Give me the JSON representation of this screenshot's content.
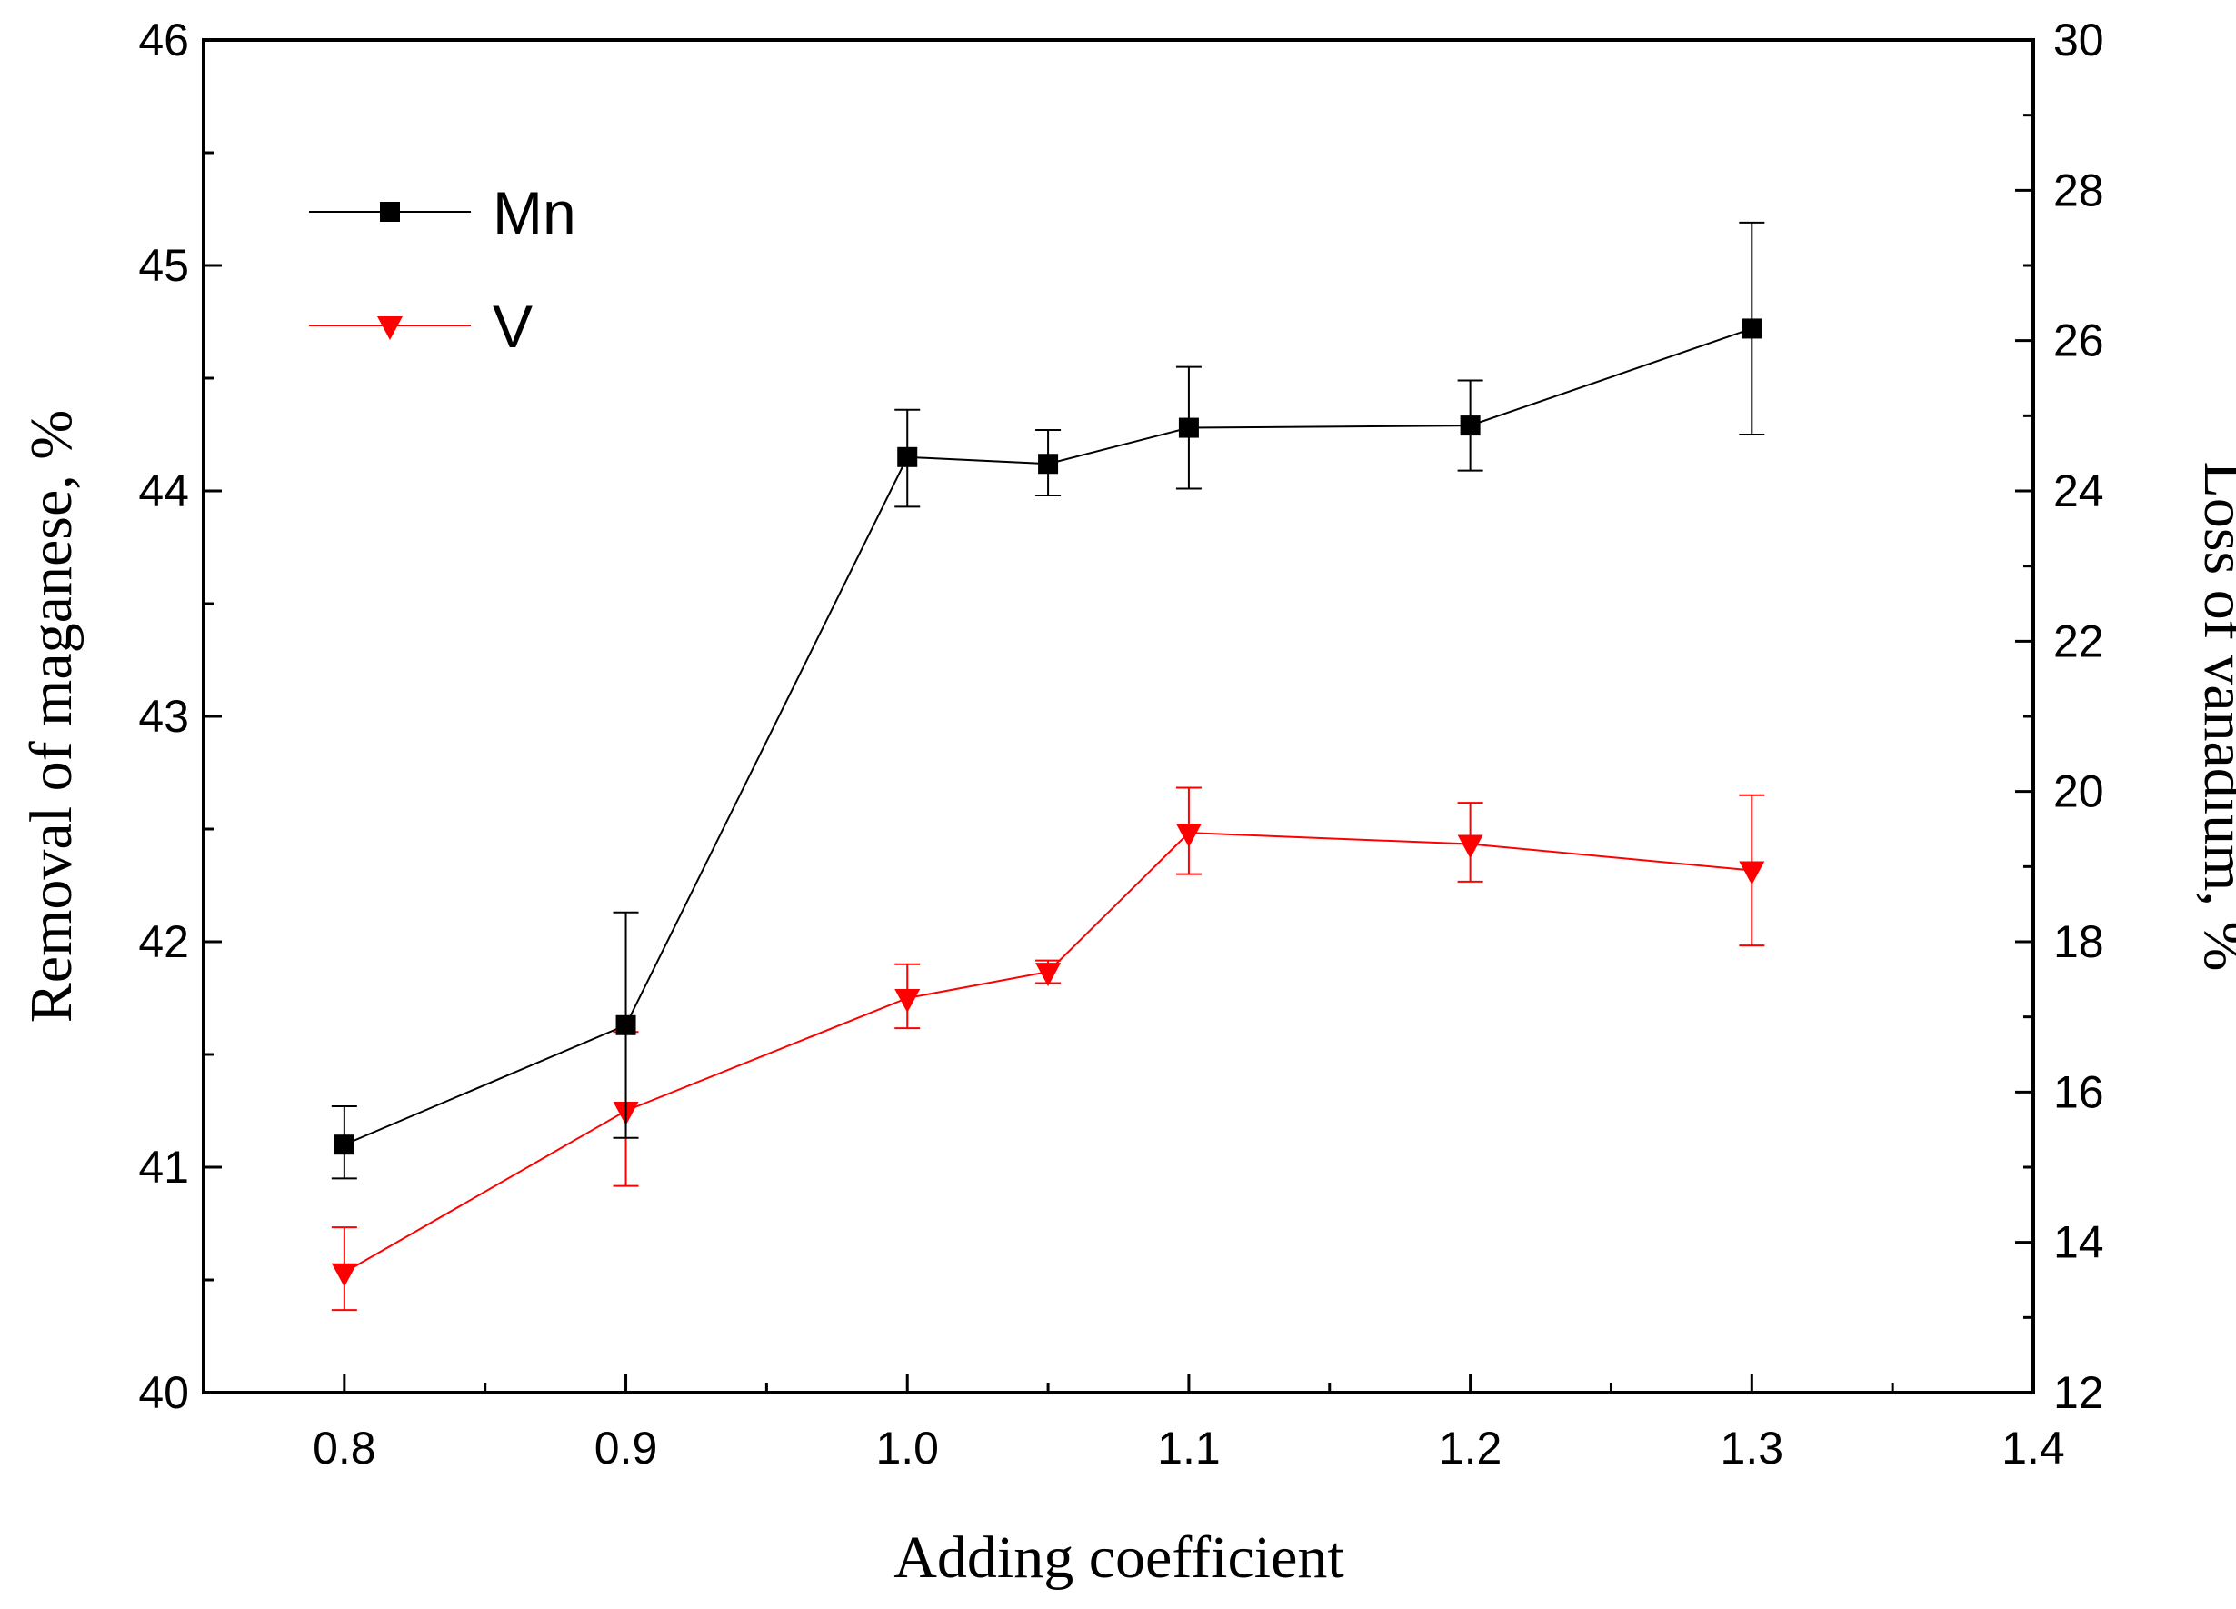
{
  "chart_data": {
    "type": "line",
    "xlabel": "Adding coefficient",
    "ylabel_left": "Removal of maganese, %",
    "ylabel_right": "Loss of vanadium, %",
    "xlim": [
      0.75,
      1.4
    ],
    "ylim_left": [
      40,
      46
    ],
    "ylim_right": [
      12,
      30
    ],
    "x_ticks": [
      "0.8",
      "0.9",
      "1.0",
      "1.1",
      "1.2",
      "1.3",
      "1.4"
    ],
    "y_left_ticks": [
      "40",
      "41",
      "42",
      "43",
      "44",
      "45",
      "46"
    ],
    "y_right_ticks": [
      "12",
      "14",
      "16",
      "18",
      "20",
      "22",
      "24",
      "26",
      "28",
      "30"
    ],
    "grid": false,
    "legend_position": "top-left",
    "series": [
      {
        "name": "Mn",
        "axis": "left",
        "color": "#000000",
        "marker": "square",
        "points": [
          {
            "x": 0.8,
            "y": 41.1,
            "err_low": 0.15,
            "err_high": 0.17
          },
          {
            "x": 0.9,
            "y": 41.63,
            "err_low": 0.5,
            "err_high": 0.5
          },
          {
            "x": 1.0,
            "y": 44.15,
            "err_low": 0.22,
            "err_high": 0.21
          },
          {
            "x": 1.05,
            "y": 44.12,
            "err_low": 0.14,
            "err_high": 0.15
          },
          {
            "x": 1.1,
            "y": 44.28,
            "err_low": 0.27,
            "err_high": 0.27
          },
          {
            "x": 1.2,
            "y": 44.29,
            "err_low": 0.2,
            "err_high": 0.2
          },
          {
            "x": 1.3,
            "y": 44.72,
            "err_low": 0.47,
            "err_high": 0.47
          }
        ]
      },
      {
        "name": "V",
        "axis": "right",
        "color": "#ff0000",
        "marker": "triangle-down",
        "points": [
          {
            "x": 0.8,
            "y": 13.6,
            "err_low": 0.5,
            "err_high": 0.6
          },
          {
            "x": 0.9,
            "y": 15.75,
            "err_low": 1.0,
            "err_high": 1.05
          },
          {
            "x": 1.0,
            "y": 17.25,
            "err_low": 0.4,
            "err_high": 0.45
          },
          {
            "x": 1.05,
            "y": 17.6,
            "err_low": 0.15,
            "err_high": 0.15
          },
          {
            "x": 1.1,
            "y": 19.45,
            "err_low": 0.55,
            "err_high": 0.6
          },
          {
            "x": 1.2,
            "y": 19.3,
            "err_low": 0.5,
            "err_high": 0.55
          },
          {
            "x": 1.3,
            "y": 18.95,
            "err_low": 1.0,
            "err_high": 1.0
          }
        ]
      }
    ]
  }
}
